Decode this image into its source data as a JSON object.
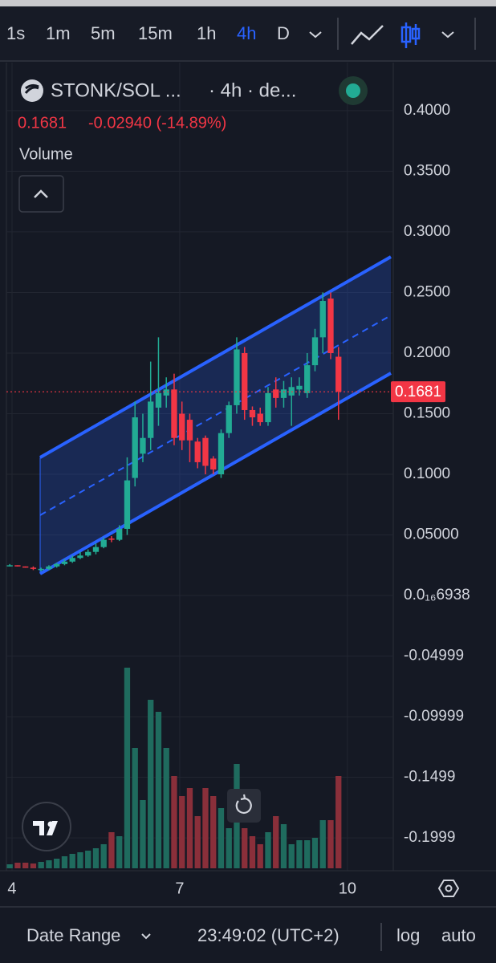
{
  "toolbar": {
    "intervals": [
      "1s",
      "1m",
      "5m",
      "15m",
      "1h",
      "4h",
      "D"
    ],
    "active_interval": 5
  },
  "legend": {
    "symbol": "STONK/SOL ...",
    "meta": "· 4h · de...",
    "price": "0.1681",
    "change": "-0.02940 (-14.89%)",
    "study": "Volume"
  },
  "chart_data": {
    "type": "candlestick",
    "x": [
      3.96,
      4.1,
      4.24,
      4.38,
      4.52,
      4.66,
      4.8,
      4.94,
      5.08,
      5.22,
      5.36,
      5.5,
      5.64,
      5.78,
      5.92,
      6.06,
      6.2,
      6.34,
      6.48,
      6.62,
      6.76,
      6.9,
      7.04,
      7.18,
      7.32,
      7.46,
      7.6,
      7.74,
      7.88,
      8.02,
      8.16,
      8.3,
      8.44,
      8.58,
      8.72,
      8.86,
      9,
      9.14,
      9.28,
      9.42,
      9.56,
      9.7,
      9.84
    ],
    "open": [
      0.025,
      0.025,
      0.024,
      0.023,
      0.021,
      0.022,
      0.024,
      0.026,
      0.028,
      0.031,
      0.033,
      0.036,
      0.04,
      0.047,
      0.046,
      0.055,
      0.097,
      0.117,
      0.13,
      0.155,
      0.165,
      0.17,
      0.15,
      0.145,
      0.127,
      0.13,
      0.113,
      0.1,
      0.134,
      0.157,
      0.2,
      0.153,
      0.15,
      0.143,
      0.17,
      0.163,
      0.165,
      0.17,
      0.167,
      0.19,
      0.213,
      0.245,
      0.197
    ],
    "high": [
      0.026,
      0.025,
      0.024,
      0.024,
      0.023,
      0.025,
      0.027,
      0.03,
      0.033,
      0.036,
      0.038,
      0.043,
      0.048,
      0.049,
      0.058,
      0.114,
      0.16,
      0.15,
      0.193,
      0.213,
      0.18,
      0.183,
      0.16,
      0.15,
      0.13,
      0.132,
      0.115,
      0.137,
      0.16,
      0.213,
      0.205,
      0.156,
      0.155,
      0.172,
      0.18,
      0.177,
      0.18,
      0.18,
      0.2,
      0.22,
      0.25,
      0.25,
      0.205
    ],
    "low": [
      0.024,
      0.024,
      0.023,
      0.021,
      0.02,
      0.021,
      0.023,
      0.025,
      0.027,
      0.03,
      0.032,
      0.034,
      0.039,
      0.044,
      0.045,
      0.05,
      0.09,
      0.11,
      0.12,
      0.14,
      0.155,
      0.124,
      0.12,
      0.11,
      0.105,
      0.1,
      0.1,
      0.097,
      0.13,
      0.15,
      0.145,
      0.14,
      0.14,
      0.14,
      0.155,
      0.155,
      0.14,
      0.165,
      0.163,
      0.185,
      0.2,
      0.195,
      0.145
    ],
    "close": [
      0.025,
      0.024,
      0.023,
      0.022,
      0.022,
      0.024,
      0.026,
      0.028,
      0.031,
      0.033,
      0.036,
      0.04,
      0.046,
      0.046,
      0.055,
      0.095,
      0.147,
      0.13,
      0.16,
      0.167,
      0.17,
      0.13,
      0.128,
      0.128,
      0.11,
      0.107,
      0.104,
      0.134,
      0.157,
      0.203,
      0.153,
      0.147,
      0.143,
      0.167,
      0.163,
      0.17,
      0.172,
      0.173,
      0.19,
      0.213,
      0.243,
      0.2,
      0.1681
    ],
    "volume": [
      5,
      7,
      7,
      6,
      8,
      10,
      12,
      15,
      18,
      20,
      22,
      25,
      30,
      45,
      40,
      250,
      150,
      85,
      210,
      195,
      150,
      115,
      90,
      100,
      65,
      100,
      90,
      75,
      50,
      130,
      50,
      40,
      30,
      45,
      65,
      55,
      30,
      35,
      35,
      38,
      60,
      60,
      115
    ],
    "up_color": "#22ab94",
    "down_color": "#f23645",
    "volume_up_color": "#1f6b5e",
    "volume_down_color": "#8a2f3a",
    "xlim": [
      3.785,
      10.82
    ],
    "xticks": [
      4,
      7,
      10
    ],
    "ylim": [
      -0.227,
      0.435
    ],
    "yticks": [
      {
        "value": 0.4,
        "label": "0.4000"
      },
      {
        "value": 0.35,
        "label": "0.3500"
      },
      {
        "value": 0.3,
        "label": "0.3000"
      },
      {
        "value": 0.25,
        "label": "0.2500"
      },
      {
        "value": 0.2,
        "label": "0.2000"
      },
      {
        "value": 0.15,
        "label": "0.1500"
      },
      {
        "value": 0.1,
        "label": "0.1000"
      },
      {
        "value": 0.05,
        "label": "0.05000"
      },
      {
        "value": 6.938e-17,
        "label": "0.0₁₆6938"
      },
      -0.04999,
      -0.09999,
      -0.1499,
      -0.1999
    ],
    "last_price": 0.1681,
    "grid": true
  },
  "footer": {
    "date_range": "Date Range",
    "clock": "23:49:02 (UTC+2)",
    "log": "log",
    "auto": "auto"
  }
}
